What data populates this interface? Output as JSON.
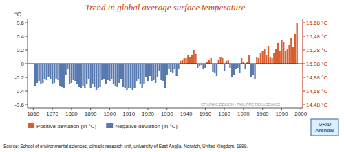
{
  "chart_data": {
    "type": "bar",
    "title": "Trend in global average surface temperature",
    "ylabel": "°C",
    "annotations": [
      "Source: School of environmental sciences, climatic research unit, university of East Anglia, Norwich, United Kingdom, 1999.",
      "GRAPHIC DESIGN : PHILIPPE REKACEWICZ",
      "GRID\nArendal"
    ],
    "x": [
      1861,
      1862,
      1863,
      1864,
      1865,
      1866,
      1867,
      1868,
      1869,
      1870,
      1871,
      1872,
      1873,
      1874,
      1875,
      1876,
      1877,
      1878,
      1879,
      1880,
      1881,
      1882,
      1883,
      1884,
      1885,
      1886,
      1887,
      1888,
      1889,
      1890,
      1891,
      1892,
      1893,
      1894,
      1895,
      1896,
      1897,
      1898,
      1899,
      1900,
      1901,
      1902,
      1903,
      1904,
      1905,
      1906,
      1907,
      1908,
      1909,
      1910,
      1911,
      1912,
      1913,
      1914,
      1915,
      1916,
      1917,
      1918,
      1919,
      1920,
      1921,
      1922,
      1923,
      1924,
      1925,
      1926,
      1927,
      1928,
      1929,
      1930,
      1931,
      1932,
      1933,
      1934,
      1935,
      1936,
      1937,
      1938,
      1939,
      1940,
      1941,
      1942,
      1943,
      1944,
      1945,
      1946,
      1947,
      1948,
      1949,
      1950,
      1951,
      1952,
      1953,
      1954,
      1955,
      1956,
      1957,
      1958,
      1959,
      1960,
      1961,
      1962,
      1963,
      1964,
      1965,
      1966,
      1967,
      1968,
      1969,
      1970,
      1971,
      1972,
      1973,
      1974,
      1975,
      1976,
      1977,
      1978,
      1979,
      1980,
      1981,
      1982,
      1983,
      1984,
      1985,
      1986,
      1987,
      1988,
      1989,
      1990,
      1991,
      1992,
      1993,
      1994,
      1995,
      1996,
      1997,
      1998
    ],
    "series": [
      {
        "name": "Positive deviation (in °C)",
        "color": "#d95f30",
        "values": [
          null,
          null,
          null,
          null,
          null,
          null,
          null,
          null,
          null,
          null,
          null,
          null,
          null,
          null,
          null,
          null,
          null,
          null,
          null,
          null,
          null,
          null,
          null,
          null,
          null,
          null,
          null,
          null,
          null,
          null,
          null,
          null,
          null,
          null,
          null,
          null,
          null,
          null,
          null,
          null,
          null,
          null,
          null,
          null,
          null,
          null,
          null,
          null,
          null,
          null,
          null,
          null,
          null,
          null,
          null,
          null,
          null,
          null,
          null,
          null,
          null,
          null,
          null,
          null,
          null,
          null,
          null,
          null,
          null,
          null,
          null,
          null,
          null,
          null,
          null,
          null,
          0.04,
          0.06,
          0.08,
          0.08,
          0.12,
          0.1,
          0.12,
          0.2,
          0.14,
          null,
          null,
          null,
          null,
          null,
          0.02,
          0.06,
          0.08,
          null,
          null,
          null,
          0.06,
          0.1,
          0.08,
          null,
          0.04,
          0.06,
          null,
          null,
          null,
          null,
          null,
          null,
          0.08,
          0.02,
          null,
          0.02,
          0.12,
          null,
          null,
          null,
          0.1,
          0.08,
          0.16,
          0.18,
          0.22,
          0.12,
          0.26,
          0.1,
          0.08,
          0.16,
          0.22,
          0.3,
          0.18,
          0.34,
          0.32,
          0.18,
          0.22,
          0.28,
          0.38,
          0.24,
          0.44,
          0.6
        ]
      },
      {
        "name": "Negative deviation (in °C)",
        "color": "#5878b0",
        "values": [
          -0.32,
          -0.28,
          -0.25,
          -0.3,
          -0.28,
          -0.22,
          -0.24,
          -0.2,
          -0.22,
          -0.3,
          -0.28,
          -0.22,
          -0.24,
          -0.32,
          -0.34,
          -0.36,
          -0.16,
          -0.08,
          -0.3,
          -0.28,
          -0.24,
          -0.26,
          -0.3,
          -0.34,
          -0.36,
          -0.32,
          -0.36,
          -0.3,
          -0.22,
          -0.36,
          -0.3,
          -0.34,
          -0.38,
          -0.36,
          -0.34,
          -0.24,
          -0.22,
          -0.3,
          -0.24,
          -0.26,
          -0.22,
          -0.3,
          -0.32,
          -0.34,
          -0.28,
          -0.22,
          -0.34,
          -0.36,
          -0.38,
          -0.36,
          -0.36,
          -0.38,
          -0.36,
          -0.26,
          -0.22,
          -0.3,
          -0.36,
          -0.3,
          -0.2,
          -0.26,
          -0.18,
          -0.26,
          -0.24,
          -0.28,
          -0.2,
          -0.1,
          -0.24,
          -0.26,
          -0.36,
          -0.16,
          -0.08,
          -0.12,
          -0.14,
          -0.08,
          -0.18,
          -0.08,
          null,
          null,
          null,
          null,
          null,
          null,
          null,
          null,
          null,
          -0.06,
          -0.04,
          -0.02,
          -0.08,
          -0.06,
          null,
          null,
          null,
          -0.12,
          -0.14,
          -0.18,
          null,
          null,
          null,
          -0.1,
          null,
          null,
          -0.06,
          -0.2,
          -0.16,
          -0.08,
          -0.06,
          -0.14,
          null,
          null,
          -0.08,
          null,
          null,
          -0.2,
          -0.16,
          -0.22,
          null,
          null,
          null,
          null,
          null,
          null,
          null,
          null,
          null,
          null,
          null,
          null,
          null,
          null,
          null,
          null,
          null,
          null,
          null,
          null,
          null,
          null
        ]
      }
    ],
    "xlim": [
      1857,
      2001
    ],
    "xticks": [
      1860,
      1870,
      1880,
      1890,
      1900,
      1910,
      1920,
      1930,
      1940,
      1950,
      1960,
      1970,
      1980,
      1990,
      2000
    ],
    "ylim": [
      -0.65,
      0.65
    ],
    "yticks": [
      -0.6,
      -0.4,
      -0.2,
      0,
      0.2,
      0.4,
      0.6
    ],
    "y2lim": [
      -0.65,
      0.65
    ],
    "y2ticks": [
      {
        "value": 0.6,
        "label": "15,68 °C"
      },
      {
        "value": 0.4,
        "label": "15,48 °C"
      },
      {
        "value": 0.2,
        "label": "15,28 °C"
      },
      {
        "value": 0.0,
        "label": "15,08 °C"
      },
      {
        "value": -0.2,
        "label": "14,88 °C"
      },
      {
        "value": -0.4,
        "label": "14,68 °C"
      },
      {
        "value": -0.6,
        "label": "14,48 °C"
      }
    ],
    "grid": false,
    "legend": "bottom"
  }
}
